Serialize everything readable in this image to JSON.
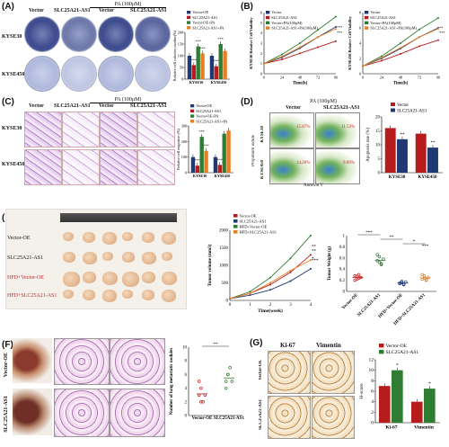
{
  "panels": {
    "A": {
      "letter": "(A)",
      "pa_header": "PA (100μM)",
      "col_labels": [
        "Vector",
        "SLC25A21-AS1",
        "Vector",
        "SLC25A21-AS1"
      ],
      "row_labels": [
        "KYSE30",
        "KYSE450"
      ]
    },
    "B": {
      "letter": "(B)"
    },
    "C": {
      "letter": "(C)",
      "pa_header": "PA (100μM)",
      "col_labels": [
        "Vector",
        "SLC25A21-AS1",
        "Vector",
        "SLC25A21-AS1"
      ],
      "row_labels": [
        "KYSE30",
        "KYSE450"
      ]
    },
    "D": {
      "letter": "(D)",
      "pa_header": "PA (100μM)",
      "col_labels": [
        "Vector",
        "SLC25A21-AS1"
      ],
      "row_labels": [
        "KYSE30",
        "KYSE450"
      ],
      "y_axis": "Propidium iodide",
      "x_axis": "Annexin V",
      "quad_values": [
        "15.87%",
        "11.53%",
        "14.26%",
        "9.09%"
      ]
    },
    "E": {
      "letter": "(E)",
      "photo_labels": [
        "Vector-OE",
        "SLC25A21-AS1",
        "HFD+Vector-OE",
        "HFD+SLC25A21-AS1"
      ]
    },
    "F": {
      "letter": "(F)",
      "row_labels": [
        "Vector-OE",
        "SLC25A21-AS1"
      ]
    },
    "G": {
      "letter": "(G)",
      "col_labels": [
        "Ki-67",
        "Vimentin"
      ],
      "row_labels": [
        "Vector-OE",
        "SLC25A21-AS1"
      ]
    }
  },
  "chart_data": [
    {
      "id": "A-bar",
      "type": "bar",
      "ylabel": "Relative cell colonies number(%)",
      "categories": [
        "KYSE30",
        "KYSE450"
      ],
      "legend": [
        "Vector-OE",
        "SLC25A21-AS1",
        "Vector-OE+PA",
        "SLC25A21-AS1+PA"
      ],
      "colors": [
        "#1f3a73",
        "#b71c1c",
        "#2e7d32",
        "#e67e22"
      ],
      "series": [
        {
          "name": "Vector-OE",
          "values": [
            100,
            100
          ]
        },
        {
          "name": "SLC25A21-AS1",
          "values": [
            60,
            55
          ]
        },
        {
          "name": "Vector-OE+PA",
          "values": [
            140,
            150
          ]
        },
        {
          "name": "SLC25A21-AS1+PA",
          "values": [
            110,
            120
          ]
        }
      ],
      "ylim": [
        0,
        200
      ],
      "yticks": [
        0,
        50,
        100,
        150,
        200
      ],
      "annotations": [
        "***",
        "***",
        "***",
        "***",
        "***"
      ]
    },
    {
      "id": "B-KYSE30",
      "type": "line",
      "ylabel": "KYSE30 Relative Cell Viability",
      "xlabel": "Time(h)",
      "x": [
        0,
        24,
        48,
        72,
        96
      ],
      "ylim": [
        0,
        6
      ],
      "yticks": [
        0,
        1,
        2,
        3,
        4,
        5,
        6
      ],
      "legend": [
        "Vector",
        "SLC25A21-AS1",
        "Vector+PA(100μM)",
        "SLC25A21-AS1+PA(100μM)"
      ],
      "colors": [
        "#1f3a73",
        "#b71c1c",
        "#2e7d32",
        "#e67e22"
      ],
      "series": [
        {
          "name": "Vector",
          "values": [
            1.0,
            1.6,
            2.5,
            3.6,
            4.6
          ]
        },
        {
          "name": "SLC25A21-AS1",
          "values": [
            1.0,
            1.4,
            2.0,
            2.6,
            3.2
          ]
        },
        {
          "name": "Vector+PA(100μM)",
          "values": [
            1.0,
            1.9,
            3.0,
            4.3,
            5.6
          ]
        },
        {
          "name": "SLC25A21-AS1+PA(100μM)",
          "values": [
            1.0,
            1.7,
            2.6,
            3.6,
            4.4
          ]
        }
      ],
      "annotations": [
        "***",
        "***"
      ]
    },
    {
      "id": "B-KYSE450",
      "type": "line",
      "ylabel": "KYSE450 Relative Cell Viability",
      "xlabel": "Time(h)",
      "x": [
        0,
        24,
        48,
        72,
        96
      ],
      "ylim": [
        0,
        8
      ],
      "yticks": [
        0,
        2,
        4,
        6,
        8
      ],
      "legend": [
        "Vector",
        "SLC25A21-AS1",
        "Vector+PA(100μM)",
        "SLC25A21-AS1+PA(100μM)"
      ],
      "colors": [
        "#1f3a73",
        "#b71c1c",
        "#2e7d32",
        "#e67e22"
      ],
      "series": [
        {
          "name": "Vector",
          "values": [
            1.0,
            2.0,
            3.3,
            4.8,
            6.0
          ]
        },
        {
          "name": "SLC25A21-AS1",
          "values": [
            1.0,
            1.7,
            2.6,
            3.6,
            4.4
          ]
        },
        {
          "name": "Vector+PA(100μM)",
          "values": [
            1.0,
            2.3,
            4.0,
            5.8,
            7.3
          ]
        },
        {
          "name": "SLC25A21-AS1+PA(100μM)",
          "values": [
            1.0,
            2.1,
            3.4,
            4.8,
            5.9
          ]
        }
      ],
      "annotations": [
        "***",
        "**"
      ]
    },
    {
      "id": "C-bar",
      "type": "bar",
      "ylabel": "Relative cell migration (%)",
      "categories": [
        "KYSE30",
        "KYSE450"
      ],
      "legend": [
        "Vector-OE",
        "SLC25A21-AS1",
        "Vector-OE+PA",
        "SLC25A21-AS1+PA"
      ],
      "colors": [
        "#1f3a73",
        "#b71c1c",
        "#2e7d32",
        "#e67e22"
      ],
      "series": [
        {
          "name": "Vector-OE",
          "values": [
            100,
            100
          ]
        },
        {
          "name": "SLC25A21-AS1",
          "values": [
            45,
            50
          ]
        },
        {
          "name": "Vector-OE+PA",
          "values": [
            230,
            250
          ]
        },
        {
          "name": "SLC25A21-AS1+PA",
          "values": [
            140,
            270
          ]
        }
      ],
      "ylim": [
        0,
        300
      ],
      "yticks": [
        0,
        100,
        200,
        300
      ],
      "annotations": [
        "***",
        "***",
        "***",
        "***"
      ]
    },
    {
      "id": "D-bar",
      "type": "bar",
      "ylabel": "Apoptosis rate (%)",
      "categories": [
        "KYSE30",
        "KYSE450"
      ],
      "legend": [
        "Vector",
        "SLC25A21-AS1"
      ],
      "colors": [
        "#b71c1c",
        "#1f3a73"
      ],
      "series": [
        {
          "name": "Vector",
          "values": [
            16,
            14
          ]
        },
        {
          "name": "SLC25A21-AS1",
          "values": [
            12,
            9
          ]
        }
      ],
      "ylim": [
        0,
        20
      ],
      "yticks": [
        0,
        5,
        10,
        15,
        20
      ],
      "annotations": [
        "**",
        "**"
      ]
    },
    {
      "id": "E-volume",
      "type": "line",
      "ylabel": "Tumor volume (mm3)",
      "xlabel": "Time(week)",
      "x": [
        0,
        1,
        2,
        3,
        4
      ],
      "ylim": [
        0,
        2000
      ],
      "yticks": [
        0,
        500,
        1000,
        1500,
        2000
      ],
      "legend": [
        "Vector-OE",
        "SLC25A21-AS1",
        "HFD+Vector-OE",
        "HFD+SLC25A21-AS1"
      ],
      "colors": [
        "#b71c1c",
        "#1f3a73",
        "#2e7d32",
        "#e67e22"
      ],
      "series": [
        {
          "name": "Vector-OE",
          "values": [
            50,
            200,
            450,
            800,
            1300
          ]
        },
        {
          "name": "SLC25A21-AS1",
          "values": [
            50,
            150,
            300,
            550,
            900
          ]
        },
        {
          "name": "HFD+Vector-OE",
          "values": [
            50,
            250,
            650,
            1200,
            1850
          ]
        },
        {
          "name": "HFD+SLC25A21-AS1",
          "values": [
            50,
            200,
            500,
            850,
            1150
          ]
        }
      ],
      "annotations": [
        "***",
        "**",
        "**",
        "*"
      ]
    },
    {
      "id": "E-weight",
      "type": "scatter",
      "ylabel": "Tumor Weight (g)",
      "categories": [
        "Vector-OE",
        "SLC25A21-AS1",
        "HFD+Vector-OE",
        "HFD+SLC25A21-AS1"
      ],
      "colors": [
        "#b71c1c",
        "#2e7d32",
        "#1f3a73",
        "#e67e22"
      ],
      "ylim": [
        0,
        1.0
      ],
      "yticks": [
        0.0,
        0.2,
        0.4,
        0.6,
        0.8,
        1.0
      ],
      "groups": [
        [
          0.28,
          0.22,
          0.3,
          0.25,
          0.2,
          0.27,
          0.24
        ],
        [
          0.55,
          0.62,
          0.48,
          0.58,
          0.66,
          0.52,
          0.5
        ],
        [
          0.15,
          0.18,
          0.12,
          0.17,
          0.14,
          0.16,
          0.13
        ],
        [
          0.22,
          0.28,
          0.2,
          0.25,
          0.3,
          0.24,
          0.21
        ]
      ],
      "annotations": [
        "***",
        "**",
        "*",
        "***"
      ]
    },
    {
      "id": "F-nodules",
      "type": "scatter",
      "ylabel": "Number of lung metastatic nodules",
      "categories": [
        "Vector-OE",
        "SLC25A21-AS1"
      ],
      "colors": [
        "#b71c1c",
        "#2e7d32"
      ],
      "ylim": [
        0,
        10
      ],
      "yticks": [
        0,
        2,
        4,
        6,
        8,
        10
      ],
      "groups": [
        [
          3,
          4,
          2,
          3,
          5,
          2
        ],
        [
          5,
          6,
          7,
          5,
          4,
          6
        ]
      ],
      "annotations": [
        "**"
      ]
    },
    {
      "id": "G-hscore",
      "type": "bar",
      "ylabel": "H-score",
      "categories": [
        "Ki-67",
        "Vimentin"
      ],
      "legend": [
        "Vector-OE",
        "SLC25A21-AS1"
      ],
      "colors": [
        "#b71c1c",
        "#2e7d32"
      ],
      "series": [
        {
          "name": "Vector-OE",
          "values": [
            7,
            4
          ]
        },
        {
          "name": "SLC25A21-AS1",
          "values": [
            10,
            6.5
          ]
        }
      ],
      "ylim": [
        0,
        12
      ],
      "yticks": [
        0,
        2,
        4,
        6,
        8,
        10,
        12
      ],
      "annotations": [
        "*",
        "*"
      ]
    }
  ]
}
